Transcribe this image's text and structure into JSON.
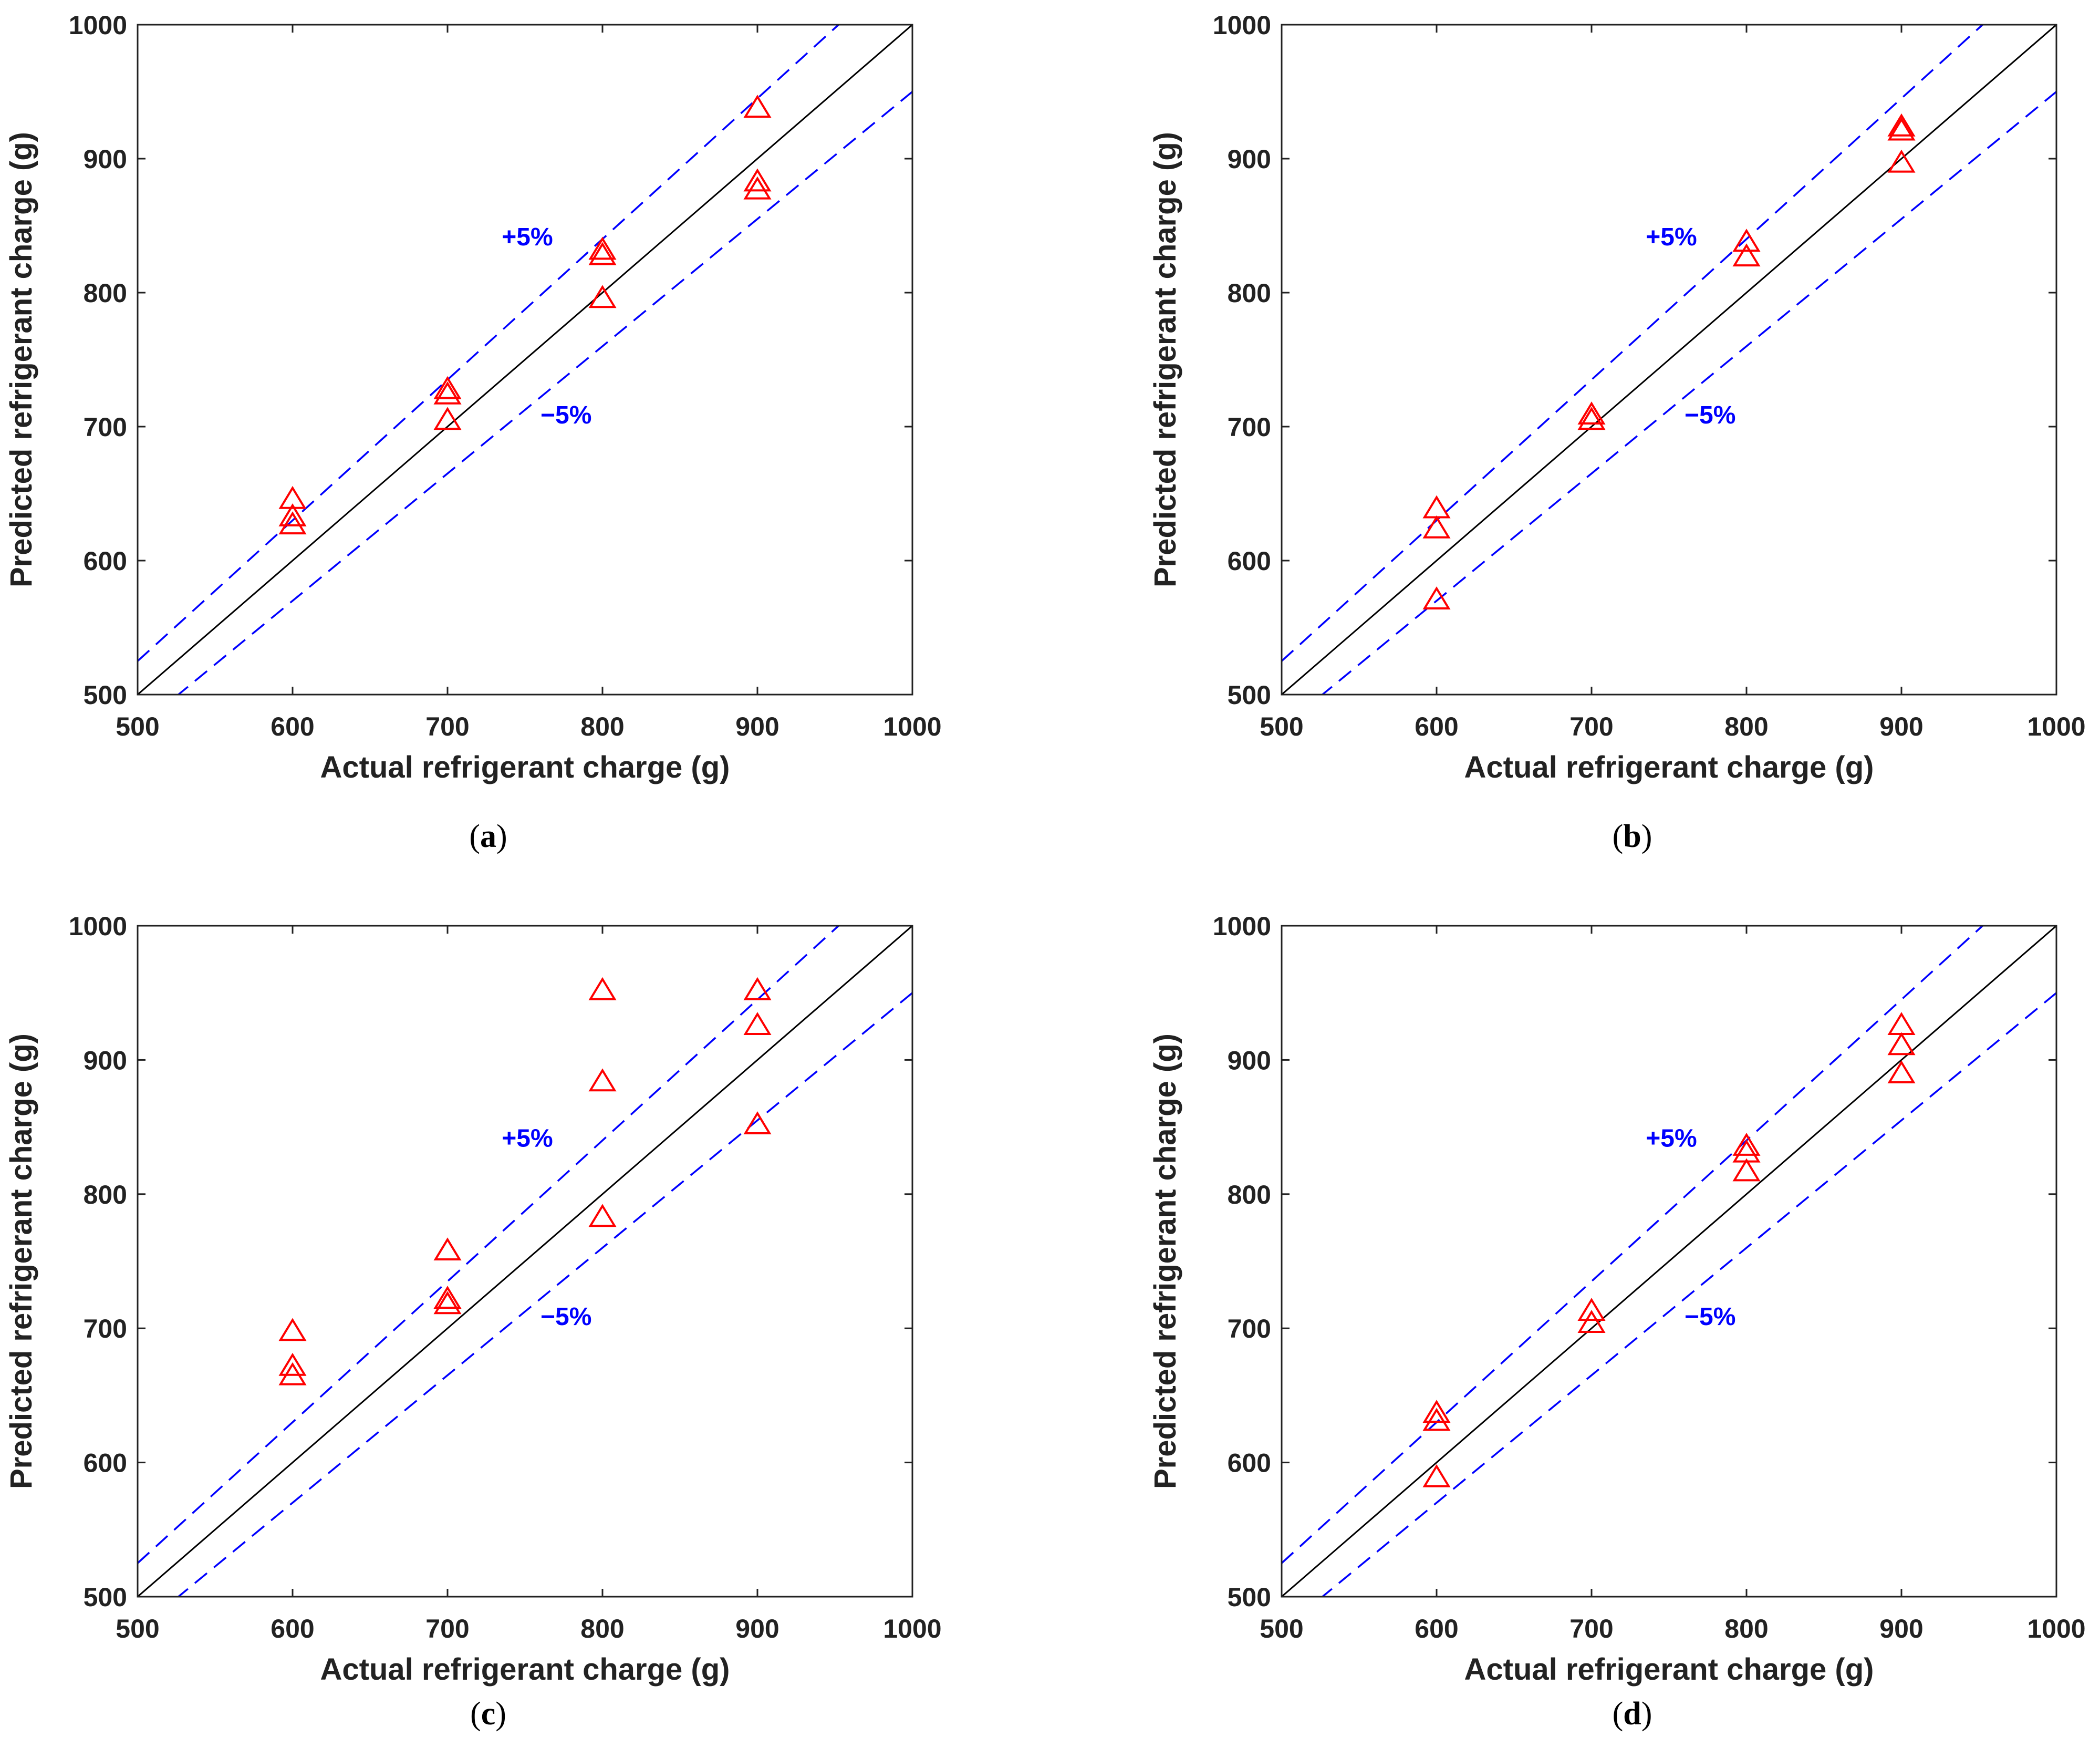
{
  "figure": {
    "colors": {
      "marker": "#ff0000",
      "band": "#0000ff",
      "reference": "#000000",
      "axis": "#222222"
    },
    "marker_shape": "triangle-icon"
  },
  "chart_data": [
    {
      "type": "scatter",
      "panel": "a",
      "caption": "(a)",
      "caption_letter": "a",
      "xlabel": "Actual refrigerant charge (g)",
      "ylabel": "Predicted refrigerant charge (g)",
      "xlim": [
        500,
        1000
      ],
      "ylim": [
        500,
        1000
      ],
      "xticks": [
        500,
        600,
        700,
        800,
        900,
        1000
      ],
      "yticks": [
        500,
        600,
        700,
        800,
        900,
        1000
      ],
      "reference_line": "y = x",
      "bands": [
        {
          "label": "+5%",
          "factor": 1.05,
          "label_at": [
            735,
            842
          ]
        },
        {
          "label": "−5%",
          "factor": 0.95,
          "label_at": [
            760,
            709
          ]
        }
      ],
      "series": [
        {
          "name": "Predicted",
          "points": [
            [
              600,
              645
            ],
            [
              600,
              632
            ],
            [
              600,
              626
            ],
            [
              700,
              727
            ],
            [
              700,
              723
            ],
            [
              700,
              704
            ],
            [
              800,
              831
            ],
            [
              800,
              827
            ],
            [
              800,
              795
            ],
            [
              900,
              937
            ],
            [
              900,
              882
            ],
            [
              900,
              876
            ]
          ]
        }
      ]
    },
    {
      "type": "scatter",
      "panel": "b",
      "caption": "(b)",
      "caption_letter": "b",
      "xlabel": "Actual refrigerant charge (g)",
      "ylabel": "Predicted refrigerant charge (g)",
      "xlim": [
        500,
        1000
      ],
      "ylim": [
        500,
        1000
      ],
      "xticks": [
        500,
        600,
        700,
        800,
        900,
        1000
      ],
      "yticks": [
        500,
        600,
        700,
        800,
        900,
        1000
      ],
      "reference_line": "y = x",
      "bands": [
        {
          "label": "+5%",
          "factor": 1.05,
          "label_at": [
            735,
            842
          ]
        },
        {
          "label": "−5%",
          "factor": 0.95,
          "label_at": [
            760,
            709
          ]
        }
      ],
      "series": [
        {
          "name": "Predicted",
          "points": [
            [
              600,
              638
            ],
            [
              600,
              623
            ],
            [
              600,
              570
            ],
            [
              700,
              708
            ],
            [
              700,
              704
            ],
            [
              800,
              837
            ],
            [
              800,
              826
            ],
            [
              900,
              923
            ],
            [
              900,
              920
            ],
            [
              900,
              896
            ]
          ]
        }
      ]
    },
    {
      "type": "scatter",
      "panel": "c",
      "caption": "(c)",
      "caption_letter": "c",
      "xlabel": "Actual refrigerant charge (g)",
      "ylabel": "Predicted refrigerant charge (g)",
      "xlim": [
        500,
        1000
      ],
      "ylim": [
        500,
        1000
      ],
      "xticks": [
        500,
        600,
        700,
        800,
        900,
        1000
      ],
      "yticks": [
        500,
        600,
        700,
        800,
        900,
        1000
      ],
      "reference_line": "y = x",
      "bands": [
        {
          "label": "+5%",
          "factor": 1.05,
          "label_at": [
            735,
            842
          ]
        },
        {
          "label": "−5%",
          "factor": 0.95,
          "label_at": [
            760,
            709
          ]
        }
      ],
      "series": [
        {
          "name": "Predicted",
          "points": [
            [
              600,
              697
            ],
            [
              600,
              671
            ],
            [
              600,
              664
            ],
            [
              700,
              757
            ],
            [
              700,
              721
            ],
            [
              700,
              717
            ],
            [
              800,
              951
            ],
            [
              800,
              883
            ],
            [
              800,
              782
            ],
            [
              900,
              951
            ],
            [
              900,
              925
            ],
            [
              900,
              851
            ]
          ]
        }
      ]
    },
    {
      "type": "scatter",
      "panel": "d",
      "caption": "(d)",
      "caption_letter": "d",
      "xlabel": "Actual refrigerant charge (g)",
      "ylabel": "Predicted refrigerant charge (g)",
      "xlim": [
        500,
        1000
      ],
      "ylim": [
        500,
        1000
      ],
      "xticks": [
        500,
        600,
        700,
        800,
        900,
        1000
      ],
      "yticks": [
        500,
        600,
        700,
        800,
        900,
        1000
      ],
      "reference_line": "y = x",
      "bands": [
        {
          "label": "+5%",
          "factor": 1.05,
          "label_at": [
            735,
            842
          ]
        },
        {
          "label": "−5%",
          "factor": 0.95,
          "label_at": [
            760,
            709
          ]
        }
      ],
      "series": [
        {
          "name": "Predicted",
          "points": [
            [
              600,
              636
            ],
            [
              600,
              630
            ],
            [
              600,
              588
            ],
            [
              700,
              712
            ],
            [
              700,
              703
            ],
            [
              800,
              835
            ],
            [
              800,
              830
            ],
            [
              800,
              816
            ],
            [
              900,
              925
            ],
            [
              900,
              910
            ],
            [
              900,
              889
            ]
          ]
        }
      ]
    }
  ]
}
